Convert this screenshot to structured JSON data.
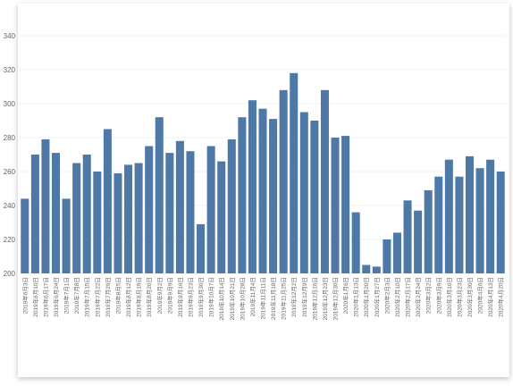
{
  "chart_data": {
    "type": "bar",
    "title": "",
    "xlabel": "",
    "ylabel": "",
    "ylim": [
      200,
      345
    ],
    "yticks": [
      200,
      220,
      240,
      260,
      280,
      300,
      320,
      340
    ],
    "grid": true,
    "bar_color": "#4e79a7",
    "categories": [
      "2019年6月3日",
      "2019年6月10日",
      "2019年6月17日",
      "2019年6月24日",
      "2019年7月1日",
      "2019年7月8日",
      "2019年7月15日",
      "2019年7月22日",
      "2019年7月29日",
      "2019年8月5日",
      "2019年8月12日",
      "2019年8月19日",
      "2019年8月26日",
      "2019年9月2日",
      "2019年9月9日",
      "2019年9月16日",
      "2019年9月23日",
      "2019年9月30日",
      "2019年10月7日",
      "2019年10月14日",
      "2019年10月21日",
      "2019年10月28日",
      "2019年11月4日",
      "2019年11月11日",
      "2019年11月18日",
      "2019年11月25日",
      "2019年12月2日",
      "2019年12月9日",
      "2019年12月16日",
      "2019年12月23日",
      "2019年12月30日",
      "2020年1月6日",
      "2020年1月13日",
      "2020年1月20日",
      "2020年1月27日",
      "2020年2月3日",
      "2020年2月10日",
      "2020年2月17日",
      "2020年2月24日",
      "2020年3月2日",
      "2020年3月9日",
      "2020年3月16日",
      "2020年3月23日",
      "2020年3月30日",
      "2020年4月6日",
      "2020年4月13日",
      "2020年4月20日"
    ],
    "values": [
      244,
      270,
      279,
      271,
      244,
      265,
      270,
      260,
      285,
      259,
      264,
      265,
      275,
      292,
      271,
      278,
      272,
      229,
      275,
      266,
      279,
      292,
      302,
      297,
      291,
      308,
      318,
      295,
      290,
      308,
      280,
      281,
      236,
      205,
      204,
      220,
      224,
      243,
      237,
      249,
      257,
      267,
      257,
      269,
      262,
      267,
      260
    ]
  }
}
